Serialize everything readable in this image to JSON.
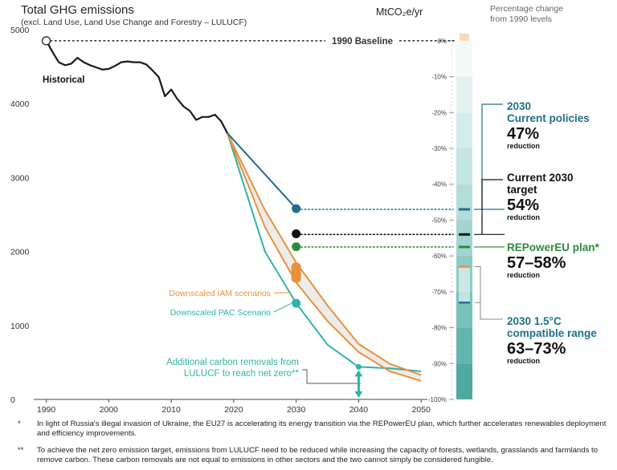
{
  "title": "Total GHG emissions",
  "subtitle": "(excl. Land Use, Land Use Change and Forestry – LULUCF)",
  "unit": "MtCO₂e/yr",
  "pct_header_line1": "Percentage change",
  "pct_header_line2": "from 1990 levels",
  "colors": {
    "historical": "#1a1a1a",
    "current_policies": "#1f6f8b",
    "current_target": "#111111",
    "repowereu": "#2e8b3a",
    "iam": "#e8913c",
    "pac": "#2fb3a8",
    "range": "#8a8a8a"
  },
  "labels": {
    "baseline": "1990 Baseline",
    "historical": "Historical",
    "iam": "Downscaled IAM scenarios",
    "pac": "Downscaled PAC Scenario",
    "removals_line1": "Additional carbon removals from",
    "removals_line2": "LULUCF to reach net zero**"
  },
  "annotations": {
    "current_policies": {
      "line1": "2030",
      "line2": "Current policies",
      "value": "47%",
      "note": "reduction"
    },
    "current_target": {
      "line1": "Current 2030",
      "line2": "target",
      "value": "54%",
      "note": "reduction"
    },
    "repowereu": {
      "line1": "REPowerEU plan*",
      "value": "57–58%",
      "note": "reduction"
    },
    "range": {
      "line1": "2030 1.5°C",
      "line2": "compatible range",
      "value": "63–73%",
      "note": "reduction"
    }
  },
  "footnotes": [
    {
      "mark": "*",
      "text": "In light of Russia's illegal invasion of Ukraine, the EU27 is accelerating its energy transition via the REPowerEU plan, which further accelerates renewables deployment and efficiency improvements."
    },
    {
      "mark": "**",
      "text": "To achieve the net zero emission target, emissions from LULUCF need to be reduced while increasing the capacity of forests, wetlands, grasslands and farmlands to remove carbon. These carbon removals are not equal to emissions in other sectors and the two cannot simply be considered fungible."
    }
  ],
  "chart_data": {
    "type": "line",
    "xlim": [
      1988,
      2051
    ],
    "ylim": [
      0,
      5000
    ],
    "x_ticks": [
      1990,
      2000,
      2010,
      2020,
      2030,
      2040,
      2050
    ],
    "y_ticks": [
      0,
      1000,
      2000,
      3000,
      4000,
      5000
    ],
    "pct_ticks": [
      "0%",
      "-10%",
      "-20%",
      "-30%",
      "-40%",
      "-50%",
      "-60%",
      "-70%",
      "-80%",
      "-90%",
      "-100%"
    ],
    "baseline_value": 4850,
    "historical": {
      "x": [
        1990,
        1991,
        1992,
        1993,
        1994,
        1995,
        1996,
        1997,
        1998,
        1999,
        2000,
        2001,
        2002,
        2003,
        2004,
        2005,
        2006,
        2007,
        2008,
        2009,
        2010,
        2011,
        2012,
        2013,
        2014,
        2015,
        2016,
        2017,
        2018,
        2019
      ],
      "y": [
        4850,
        4700,
        4560,
        4520,
        4540,
        4620,
        4560,
        4520,
        4490,
        4460,
        4470,
        4510,
        4560,
        4570,
        4560,
        4560,
        4530,
        4450,
        4360,
        4100,
        4190,
        4060,
        3960,
        3900,
        3780,
        3820,
        3820,
        3850,
        3760,
        3600
      ]
    },
    "current_policies": {
      "x": [
        2019,
        2030
      ],
      "y": [
        3600,
        2580
      ]
    },
    "iam_upper": {
      "x": [
        2019,
        2025,
        2030,
        2035,
        2040,
        2045,
        2050
      ],
      "y": [
        3600,
        2560,
        1850,
        1270,
        750,
        480,
        330
      ]
    },
    "iam_lower": {
      "x": [
        2019,
        2025,
        2030,
        2035,
        2040,
        2045,
        2050
      ],
      "y": [
        3600,
        2330,
        1580,
        1060,
        640,
        380,
        250
      ]
    },
    "pac": {
      "x": [
        2019,
        2025,
        2030,
        2035,
        2040,
        2045,
        2050
      ],
      "y": [
        3600,
        2000,
        1300,
        740,
        440,
        420,
        380
      ]
    },
    "points_2030": [
      {
        "key": "current_policies",
        "value": 2580,
        "pct": 47
      },
      {
        "key": "current_target",
        "value": 2240,
        "pct": 54
      },
      {
        "key": "repowereu",
        "value": 2065,
        "pct": 57.5
      },
      {
        "key": "pac",
        "value": 1300
      }
    ],
    "iam_2030_range": [
      1580,
      1850
    ],
    "range_2030_pct": [
      63,
      73
    ],
    "removals_point": {
      "x": 2040,
      "y": 440
    }
  }
}
